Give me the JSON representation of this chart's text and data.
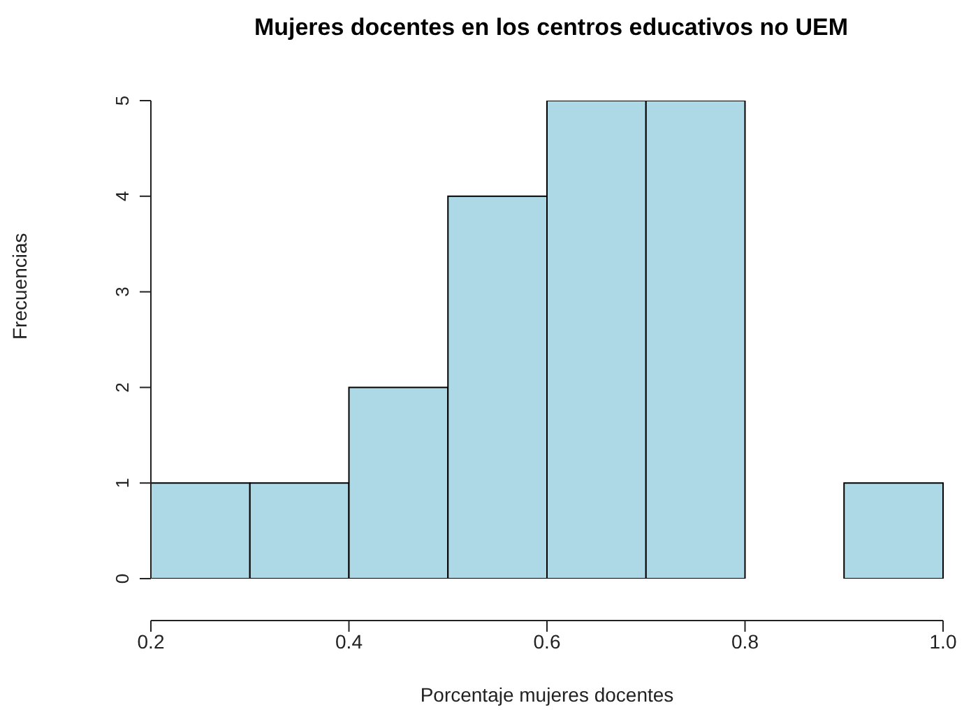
{
  "chart_data": {
    "type": "histogram",
    "title": "Mujeres docentes en los centros educativos no UEM",
    "xlabel": "Porcentaje mujeres docentes",
    "ylabel": "Frecuencias",
    "bins": [
      0.2,
      0.3,
      0.4,
      0.5,
      0.6,
      0.7,
      0.8,
      0.9,
      1.0
    ],
    "values": [
      1,
      1,
      2,
      4,
      5,
      5,
      0,
      1
    ],
    "color": "#add8e6",
    "xlim": [
      0.2,
      1.0
    ],
    "xticks": [
      0.2,
      0.4,
      0.6,
      0.8,
      {
        "value": 1.0,
        "label": "1.0"
      }
    ],
    "ylim": [
      0,
      5
    ],
    "yticks": [
      0,
      1,
      2,
      3,
      4,
      5
    ]
  }
}
